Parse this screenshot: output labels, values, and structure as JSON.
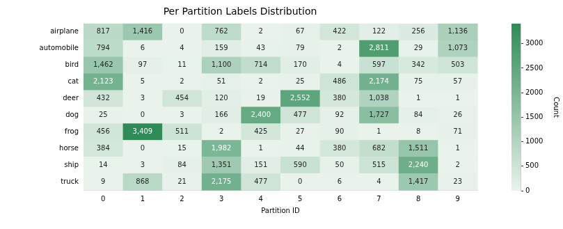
{
  "chart_data": {
    "type": "heatmap",
    "title": "Per Partition Labels Distribution",
    "x_label": "Partition ID",
    "categories": [
      "0",
      "1",
      "2",
      "3",
      "4",
      "5",
      "6",
      "7",
      "8",
      "9"
    ],
    "y_categories": [
      "airplane",
      "automobile",
      "bird",
      "cat",
      "deer",
      "dog",
      "frog",
      "horse",
      "ship",
      "truck"
    ],
    "values": [
      [
        817,
        1416,
        0,
        762,
        2,
        67,
        422,
        122,
        256,
        1136
      ],
      [
        794,
        6,
        4,
        159,
        43,
        79,
        2,
        2811,
        29,
        1073
      ],
      [
        1462,
        97,
        11,
        1100,
        714,
        170,
        4,
        597,
        342,
        503
      ],
      [
        2123,
        5,
        2,
        51,
        2,
        25,
        486,
        2174,
        75,
        57
      ],
      [
        432,
        3,
        454,
        120,
        19,
        2552,
        380,
        1038,
        1,
        1
      ],
      [
        25,
        0,
        3,
        166,
        2400,
        477,
        92,
        1727,
        84,
        26
      ],
      [
        456,
        3409,
        511,
        2,
        425,
        27,
        90,
        1,
        8,
        71
      ],
      [
        384,
        0,
        15,
        1982,
        1,
        44,
        380,
        682,
        1511,
        1
      ],
      [
        14,
        3,
        84,
        1351,
        151,
        590,
        50,
        515,
        2240,
        2
      ],
      [
        9,
        868,
        21,
        2175,
        477,
        0,
        6,
        4,
        1417,
        23
      ]
    ],
    "value_labels": [
      [
        "817",
        "1,416",
        "0",
        "762",
        "2",
        "67",
        "422",
        "122",
        "256",
        "1,136"
      ],
      [
        "794",
        "6",
        "4",
        "159",
        "43",
        "79",
        "2",
        "2,811",
        "29",
        "1,073"
      ],
      [
        "1,462",
        "97",
        "11",
        "1,100",
        "714",
        "170",
        "4",
        "597",
        "342",
        "503"
      ],
      [
        "2,123",
        "5",
        "2",
        "51",
        "2",
        "25",
        "486",
        "2,174",
        "75",
        "57"
      ],
      [
        "432",
        "3",
        "454",
        "120",
        "19",
        "2,552",
        "380",
        "1,038",
        "1",
        "1"
      ],
      [
        "25",
        "0",
        "3",
        "166",
        "2,400",
        "477",
        "92",
        "1,727",
        "84",
        "26"
      ],
      [
        "456",
        "3,409",
        "511",
        "2",
        "425",
        "27",
        "90",
        "1",
        "8",
        "71"
      ],
      [
        "384",
        "0",
        "15",
        "1,982",
        "1",
        "44",
        "380",
        "682",
        "1,511",
        "1"
      ],
      [
        "14",
        "3",
        "84",
        "1,351",
        "151",
        "590",
        "50",
        "515",
        "2,240",
        "2"
      ],
      [
        "9",
        "868",
        "21",
        "2,175",
        "477",
        "0",
        "6",
        "4",
        "1,417",
        "23"
      ]
    ],
    "data_labels": true,
    "color": "#2e8b57",
    "colorbar": {
      "label": "Count",
      "range": [
        0,
        3409
      ],
      "ticks": [
        0,
        500,
        1000,
        1500,
        2000,
        2500,
        3000
      ]
    },
    "grid": false
  }
}
